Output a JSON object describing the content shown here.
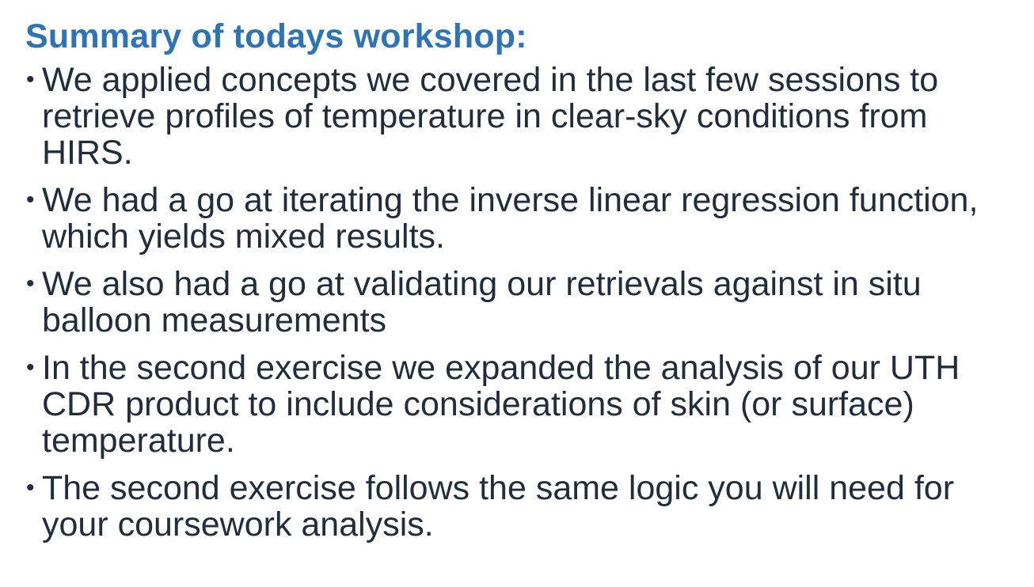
{
  "slide": {
    "title": "Summary of todays workshop:",
    "bullet_symbol": "•",
    "bullets": [
      "We applied concepts we covered in the last few sessions to retrieve profiles of temperature in clear-sky conditions from HIRS.",
      "We had a go at iterating the inverse linear regression function, which yields mixed results.",
      "We also had a go at validating our retrievals against in situ balloon measurements",
      "In the second exercise we expanded the analysis of our UTH CDR product to include considerations of skin (or surface) temperature.",
      "The second exercise follows the same logic you will need for your coursework analysis."
    ]
  },
  "colors": {
    "title": "#2e74b5",
    "body_text": "#1f2d3d",
    "background": "#ffffff"
  }
}
